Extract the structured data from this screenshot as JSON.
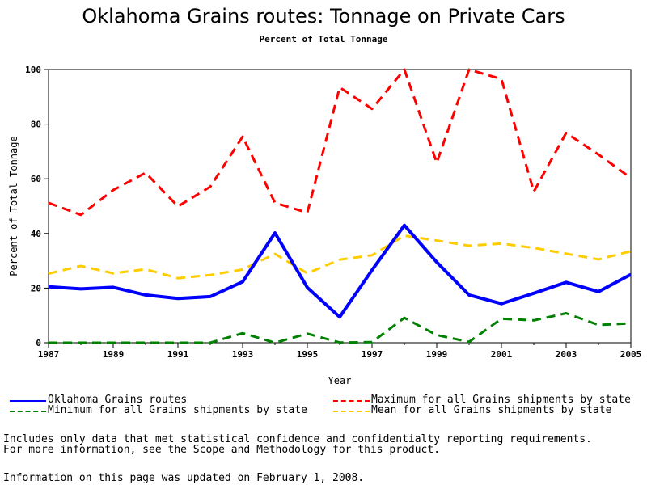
{
  "chart_data": {
    "type": "line",
    "title": "Oklahoma Grains routes: Tonnage on Private Cars",
    "subtitle": "Percent of Total Tonnage",
    "xlabel": "Year",
    "ylabel": "Percent of Total Tonnage",
    "xlim": [
      1987,
      2005
    ],
    "ylim": [
      0,
      100
    ],
    "x_ticks": [
      1987,
      1989,
      1991,
      1993,
      1995,
      1997,
      1999,
      2001,
      2003,
      2005
    ],
    "y_ticks": [
      0,
      20,
      40,
      60,
      80,
      100
    ],
    "grid": false,
    "legend_position": "bottom",
    "x": [
      1987,
      1988,
      1989,
      1990,
      1991,
      1992,
      1993,
      1994,
      1995,
      1996,
      1997,
      1998,
      1999,
      2000,
      2001,
      2002,
      2003,
      2004,
      2005
    ],
    "series": [
      {
        "name": "Oklahoma Grains routes",
        "color": "#0000ff",
        "style": "solid",
        "values": [
          20.5,
          19.7,
          20.3,
          17.5,
          16.2,
          16.9,
          22.3,
          40.2,
          20.2,
          9.4,
          26.6,
          43.0,
          29.5,
          17.5,
          14.3,
          18.1,
          22.1,
          18.7,
          25.0
        ]
      },
      {
        "name": "Maximum for all Grains shipments by state",
        "color": "#ff0000",
        "style": "dashed",
        "values": [
          51.2,
          46.8,
          55.9,
          62.2,
          49.9,
          57.1,
          75.4,
          51.2,
          47.6,
          93.5,
          85.6,
          100.0,
          65.9,
          100.0,
          96.5,
          55.3,
          76.8,
          68.9,
          60.3
        ]
      },
      {
        "name": "Minimum for all Grains shipments by state",
        "color": "#008000",
        "style": "dashed",
        "values": [
          0,
          0,
          0,
          0,
          0,
          0,
          3.5,
          0,
          3.3,
          0.1,
          0.2,
          9.1,
          2.8,
          0.3,
          8.8,
          8.2,
          10.8,
          6.5,
          7.1
        ]
      },
      {
        "name": "Mean for all Grains shipments by state",
        "color": "#ffcc00",
        "style": "dashed",
        "values": [
          25.3,
          28.1,
          25.4,
          26.9,
          23.6,
          24.8,
          26.8,
          32.5,
          25.4,
          30.4,
          32.0,
          39.2,
          37.4,
          35.5,
          36.3,
          34.7,
          32.6,
          30.5,
          33.5
        ]
      }
    ]
  },
  "notes": {
    "line1": "Includes only data that met statistical confidence and confidentialty reporting requirements.",
    "line2": "For more information, see the Scope and Methodology for this product.",
    "updated": "Information on this page was updated on February 1, 2008."
  }
}
